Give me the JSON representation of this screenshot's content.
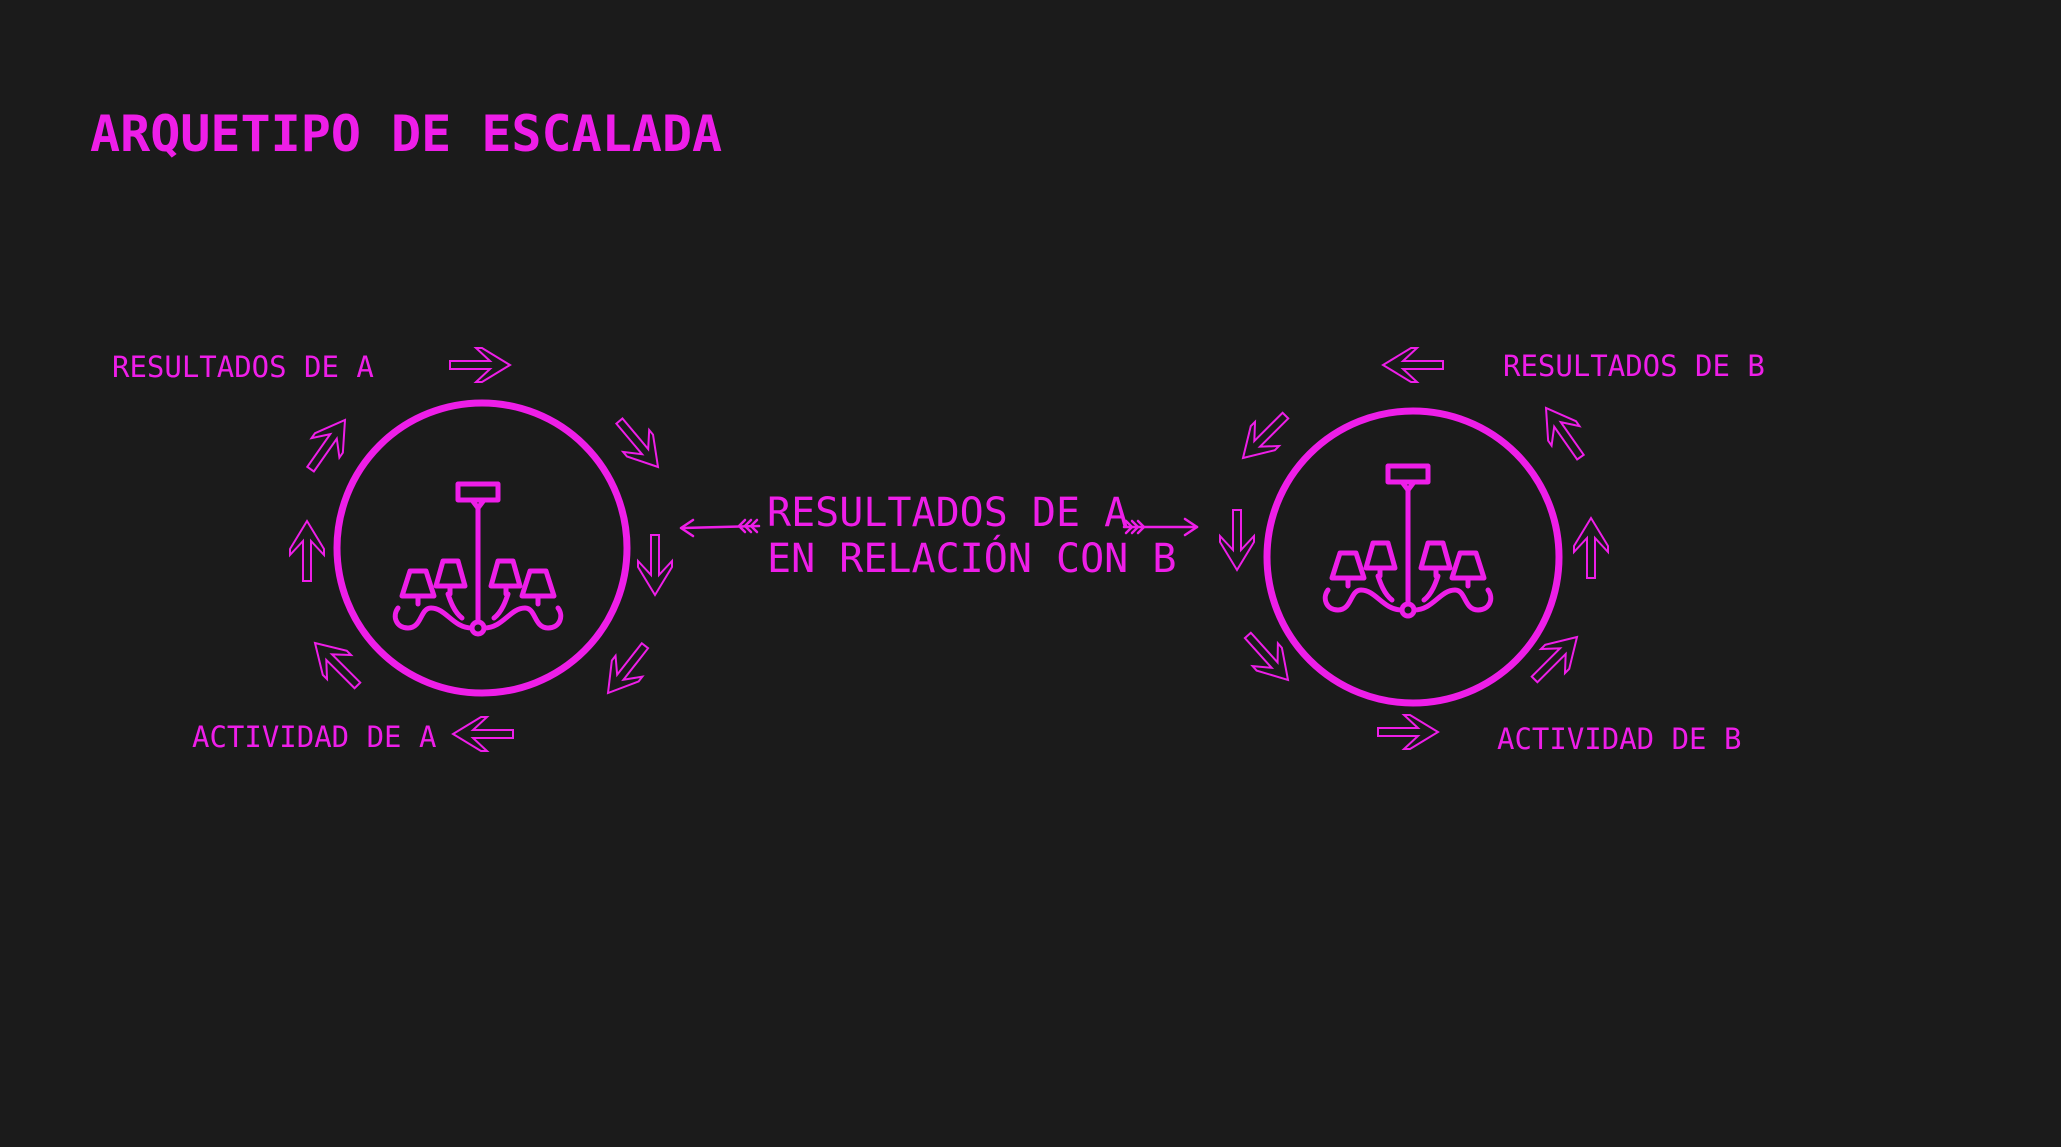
{
  "title": "ARQUETIPO DE ESCALADA",
  "loop_a": {
    "results_label": "RESULTADOS DE A",
    "activity_label": "ACTIVIDAD DE A",
    "icon": "chandelier-icon"
  },
  "loop_b": {
    "results_label": "RESULTADOS DE B",
    "activity_label": "ACTIVIDAD DE B",
    "icon": "chandelier-icon"
  },
  "relation": {
    "line1": "RESULTADOS DE A",
    "line2": "EN RELACIÓN CON B"
  },
  "colors": {
    "background": "#1b1b1b",
    "accent": "#ee1ee8"
  }
}
